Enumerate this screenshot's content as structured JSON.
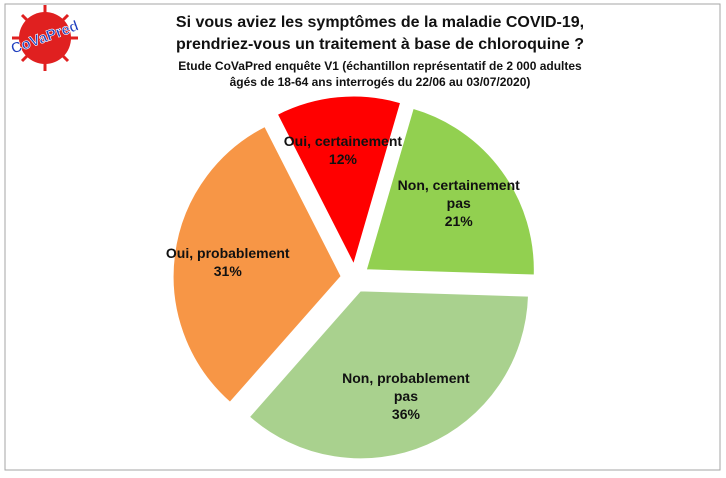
{
  "chart_data": {
    "type": "pie",
    "logo": "CoVaPred",
    "title": [
      "Si vous aviez les symptômes de la maladie COVID-19,",
      "prendriez-vous un traitement à base de chloroquine ?"
    ],
    "subtitle": [
      "Etude CoVaPred enquête V1 (échantillon représentatif de 2 000 adultes",
      "âgés de 18-64 ans interrogés du 22/06 au 03/07/2020)"
    ],
    "categories": [
      "Oui, certainement",
      "Non, certainement pas",
      "Non, probablement pas",
      "Oui, probablement"
    ],
    "values": [
      12,
      21,
      36,
      31
    ],
    "value_labels": [
      "12%",
      "21%",
      "36%",
      "31%"
    ],
    "colors": [
      "#ff0000",
      "#92d050",
      "#a9d18e",
      "#f79646"
    ]
  }
}
